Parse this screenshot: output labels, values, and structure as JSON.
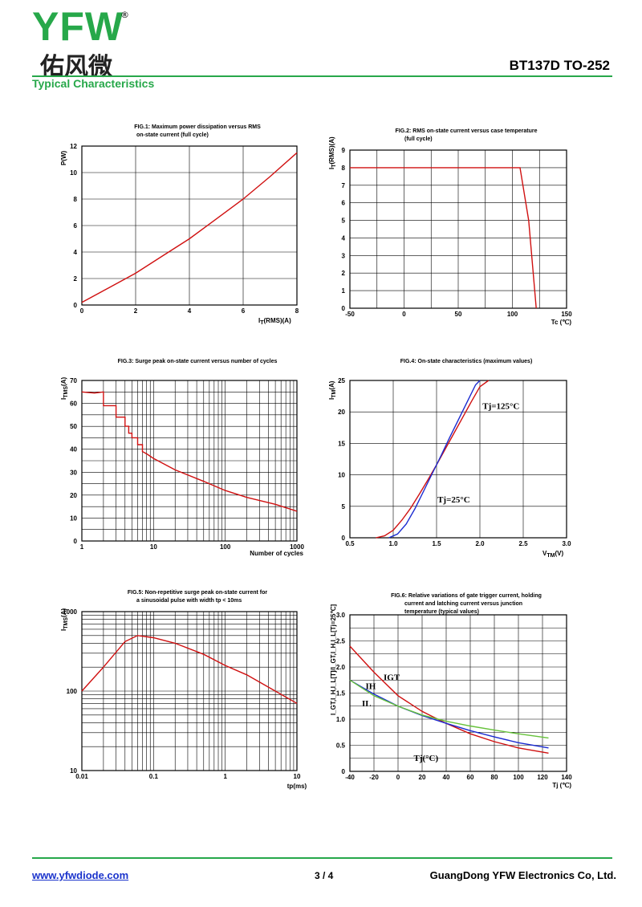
{
  "header": {
    "logo_text": "YFW",
    "registered_mark": "®",
    "logo_cn": "佑风微",
    "doc_title": "BT137D TO-252",
    "section_title": "Typical Characteristics"
  },
  "footer": {
    "website": "www.yfwdiode.com",
    "page": "3 / 4",
    "company": "GuangDong YFW Electronics Co, Ltd."
  },
  "colors": {
    "brand_green": "#27a84a",
    "curve_red": "#d01010",
    "curve_blue": "#1a2ad0",
    "curve_green": "#66c23a",
    "link_blue": "#1a33cc"
  },
  "chart_data": [
    {
      "id": "fig1",
      "type": "line",
      "title_lines": [
        "FIG.1: Maximum power dissipation versus RMS",
        "on-state current (full cycle)"
      ],
      "xlabel": "I_T(RMS)(A)",
      "ylabel": "P(W)",
      "xlim": [
        0,
        8
      ],
      "ylim": [
        0,
        12
      ],
      "xticks": [
        0,
        2,
        4,
        6,
        8
      ],
      "yticks": [
        0,
        2,
        4,
        6,
        8,
        10,
        12
      ],
      "series": [
        {
          "name": "P",
          "color": "red",
          "x": [
            0,
            1,
            2,
            3,
            4,
            5,
            6,
            7,
            8
          ],
          "y": [
            0.2,
            1.3,
            2.4,
            3.7,
            5.0,
            6.5,
            8.0,
            9.7,
            11.5
          ]
        }
      ]
    },
    {
      "id": "fig2",
      "type": "line",
      "title_lines": [
        "FIG.2: RMS on-state current versus case temperature",
        "(full cycle)"
      ],
      "xlabel": "Tc (℃)",
      "ylabel": "I_T(RMS)(A)",
      "xlim": [
        -50,
        150
      ],
      "ylim": [
        0,
        9
      ],
      "xticks": [
        -50,
        0,
        50,
        100,
        150
      ],
      "yticks": [
        0,
        1,
        2,
        3,
        4,
        5,
        6,
        7,
        8,
        9
      ],
      "series": [
        {
          "name": "I",
          "color": "red",
          "x": [
            -50,
            107,
            115,
            122
          ],
          "y": [
            8,
            8,
            5,
            0
          ]
        }
      ]
    },
    {
      "id": "fig3",
      "type": "line",
      "xscale": "log",
      "title_lines": [
        "FIG.3: Surge peak on-state current versus number of cycles"
      ],
      "xlabel": "Number of cycles",
      "ylabel": "I_TMS(A)",
      "xlim": [
        1,
        1000
      ],
      "ylim": [
        0,
        70
      ],
      "xticks": [
        1,
        10,
        100,
        1000
      ],
      "yticks": [
        0,
        10,
        20,
        30,
        40,
        50,
        60,
        70
      ],
      "series": [
        {
          "name": "I",
          "color": "red",
          "x": [
            1,
            1.5,
            2,
            2,
            3,
            3,
            4,
            4,
            4.5,
            4.5,
            5,
            5,
            6,
            6,
            7,
            7,
            8,
            10,
            20,
            50,
            100,
            200,
            500,
            1000
          ],
          "y": [
            65,
            64.5,
            65,
            59,
            59,
            54,
            54,
            50,
            50,
            47,
            47,
            45,
            45,
            42,
            42,
            39,
            38,
            36,
            31,
            26,
            22,
            19,
            16,
            13
          ]
        }
      ]
    },
    {
      "id": "fig4",
      "type": "line",
      "title_lines": [
        "FIG.4: On-state characteristics (maximum values)"
      ],
      "xlabel": "V_TM(V)",
      "ylabel": "I_TM(A)",
      "xlim": [
        0.5,
        3.0
      ],
      "ylim": [
        0,
        25
      ],
      "xticks": [
        0.5,
        1.0,
        1.5,
        2.0,
        2.5,
        3.0
      ],
      "yticks": [
        0,
        5,
        10,
        15,
        20,
        25
      ],
      "xtick_labels": [
        "0.5",
        "1.0",
        "1.5",
        "2.0",
        "2.5",
        "3.0"
      ],
      "annotations": [
        {
          "text": "Tj=125°C",
          "x": 2.03,
          "y": 20.5
        },
        {
          "text": "Tj=25°C",
          "x": 1.51,
          "y": 5.6
        }
      ],
      "series": [
        {
          "name": "Tj=125°C",
          "color": "red",
          "x": [
            0.8,
            0.9,
            1.0,
            1.1,
            1.2,
            1.3,
            1.4,
            1.5,
            1.6,
            1.7,
            1.8,
            1.9,
            2.0,
            2.1
          ],
          "y": [
            0,
            0.3,
            1.2,
            2.8,
            4.7,
            6.9,
            9.2,
            11.6,
            14.1,
            16.6,
            19.1,
            21.6,
            24.0,
            25
          ]
        },
        {
          "name": "Tj=25°C",
          "color": "blue",
          "x": [
            0.95,
            1.05,
            1.15,
            1.25,
            1.35,
            1.45,
            1.55,
            1.65,
            1.75,
            1.85,
            1.95,
            2.0
          ],
          "y": [
            0,
            0.6,
            2.2,
            4.6,
            7.4,
            10.2,
            13.0,
            15.9,
            18.7,
            21.5,
            24.3,
            25
          ]
        }
      ]
    },
    {
      "id": "fig5",
      "type": "line",
      "xscale": "log",
      "yscale": "log",
      "title_lines": [
        "FIG.5: Non-repetitive surge peak on-state current for",
        "a sinusoidal pulse with width tp < 10ms"
      ],
      "xlabel": "tp(ms)",
      "ylabel": "I_TMS(A)",
      "xlim": [
        0.01,
        10
      ],
      "ylim": [
        10,
        1000
      ],
      "xticks": [
        0.01,
        0.1,
        1,
        10
      ],
      "yticks": [
        10,
        100,
        1000
      ],
      "xtick_labels": [
        "0.01",
        "0.1",
        "1",
        "10"
      ],
      "ytick_labels": [
        "10",
        "100",
        "1000"
      ],
      "series": [
        {
          "name": "I",
          "color": "red",
          "x": [
            0.01,
            0.02,
            0.04,
            0.06,
            0.1,
            0.2,
            0.5,
            1,
            2,
            5,
            10
          ],
          "y": [
            100,
            200,
            420,
            500,
            470,
            400,
            290,
            210,
            160,
            100,
            70
          ]
        }
      ]
    },
    {
      "id": "fig6",
      "type": "line",
      "title_lines": [
        "FIG.6: Relative variations of gate trigger current, holding",
        "current and latching current versus junction",
        "temperature (typical values)"
      ],
      "xlabel": "Tj (℃)",
      "ylabel": "I_GT,I_H,I_L[T]/I_GT,I_H,I_L[Tj=25℃]",
      "xlim": [
        -40,
        140
      ],
      "ylim": [
        0,
        3.0
      ],
      "xticks": [
        -40,
        -20,
        0,
        20,
        40,
        60,
        80,
        100,
        120,
        140
      ],
      "yticks": [
        0,
        0.5,
        1.0,
        1.5,
        2.0,
        2.5,
        3.0
      ],
      "ytick_labels": [
        "0",
        "0.5",
        "1.0",
        "1.5",
        "2.0",
        "2.5",
        "3.0"
      ],
      "annotations": [
        {
          "text": "IGT",
          "x": -12,
          "y": 1.75
        },
        {
          "text": "IH",
          "x": -27,
          "y": 1.58
        },
        {
          "text": "IL",
          "x": -30,
          "y": 1.25
        },
        {
          "text": "Tj(°C)",
          "x": 13,
          "y": 0.2
        }
      ],
      "series": [
        {
          "name": "IGT",
          "color": "red",
          "x": [
            -40,
            -20,
            0,
            20,
            40,
            60,
            80,
            100,
            125
          ],
          "y": [
            2.4,
            1.9,
            1.45,
            1.15,
            0.92,
            0.72,
            0.57,
            0.45,
            0.35
          ]
        },
        {
          "name": "IH",
          "color": "blue",
          "x": [
            -40,
            -20,
            0,
            20,
            40,
            60,
            80,
            100,
            125
          ],
          "y": [
            1.75,
            1.48,
            1.25,
            1.07,
            0.92,
            0.78,
            0.66,
            0.55,
            0.45
          ]
        },
        {
          "name": "IL",
          "color": "green",
          "x": [
            -40,
            -20,
            0,
            20,
            40,
            60,
            80,
            100,
            125
          ],
          "y": [
            1.75,
            1.45,
            1.25,
            1.08,
            0.96,
            0.87,
            0.79,
            0.72,
            0.64
          ]
        }
      ]
    }
  ]
}
